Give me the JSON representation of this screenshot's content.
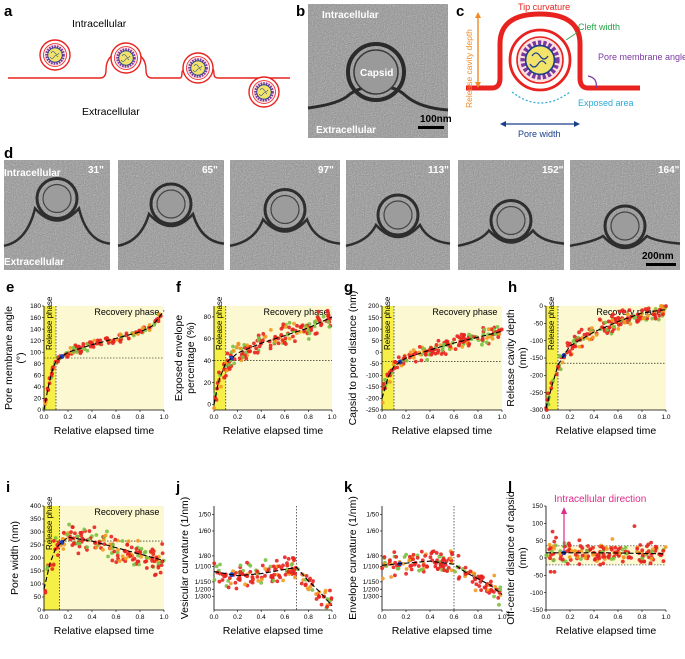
{
  "panel_labels": [
    "a",
    "b",
    "c",
    "d",
    "e",
    "f",
    "g",
    "h",
    "i",
    "j",
    "k",
    "l"
  ],
  "panel_a": {
    "intracellular": "Intracellular",
    "extracellular": "Extracellular"
  },
  "panel_b": {
    "intracellular": "Intracellular",
    "capsid": "Capsid",
    "extracellular": "Extracellular",
    "scale": "100nm"
  },
  "panel_c": {
    "release_cavity_depth": "Release cavity depth",
    "tip_curvature": "Tip curvature",
    "cleft_width": "Cleft width",
    "pore_membrane_angle": "Pore membrane angle",
    "exposed_area": "Exposed area",
    "pore_width": "Pore width",
    "colors": {
      "membrane": "#e8231f",
      "depth": "#f08a24",
      "cleft": "#2aa44a",
      "angle": "#7a3aa0",
      "exposed": "#2aa8d8",
      "width": "#1a3e8c"
    }
  },
  "panel_d": {
    "intracellular": "Intracellular",
    "extracellular": "Extracellular",
    "frame_times": [
      "31\"",
      "65\"",
      "97\"",
      "113\"",
      "152\"",
      "164\""
    ],
    "scale": "200nm"
  },
  "common": {
    "release_phase": "Release phase",
    "recovery_phase": "Recovery phase",
    "xlabel": "Relative elapsed time"
  },
  "colors": {
    "red": "#e8231f",
    "green": "#7ac143",
    "orange": "#f39a1f",
    "blue": "#1f3fbf",
    "phase_yellow": "#f5ef48",
    "phase_light": "#fbf8d2"
  },
  "chart_data": [
    {
      "id": "e",
      "type": "scatter",
      "ylabel": [
        "Pore membrane angle",
        "(°)"
      ],
      "xlim": [
        0,
        1
      ],
      "ylim": [
        0,
        180
      ],
      "xticks": [
        "0.0",
        "0.2",
        "0.4",
        "0.6",
        "0.8",
        "1.0"
      ],
      "yticks": [
        "0",
        "20",
        "40",
        "60",
        "80",
        "100",
        "120",
        "140",
        "160",
        "180"
      ],
      "hline": 90,
      "vline": 0.1,
      "release_end": 0.1,
      "trend": [
        [
          0,
          0
        ],
        [
          0.03,
          35
        ],
        [
          0.07,
          70
        ],
        [
          0.1,
          85
        ],
        [
          0.2,
          100
        ],
        [
          0.4,
          113
        ],
        [
          0.6,
          124
        ],
        [
          0.8,
          135
        ],
        [
          0.9,
          145
        ],
        [
          0.95,
          158
        ],
        [
          1,
          172
        ]
      ],
      "noise": 5,
      "n": 140
    },
    {
      "id": "f",
      "type": "scatter",
      "ylabel": [
        "Exposed envelope",
        "percentage (%)"
      ],
      "xlim": [
        0,
        1
      ],
      "ylim": [
        -5,
        90
      ],
      "xticks": [
        "0.0",
        "0.2",
        "0.4",
        "0.6",
        "0.8",
        "1.0"
      ],
      "yticks": [
        "0",
        "20",
        "40",
        "60",
        "80"
      ],
      "hline": 40,
      "vline": 0.1,
      "release_end": 0.1,
      "trend": [
        [
          0,
          0
        ],
        [
          0.04,
          22
        ],
        [
          0.1,
          38
        ],
        [
          0.2,
          47
        ],
        [
          0.4,
          56
        ],
        [
          0.6,
          63
        ],
        [
          0.8,
          70
        ],
        [
          1,
          80
        ]
      ],
      "noise": 8,
      "n": 170
    },
    {
      "id": "g",
      "type": "scatter",
      "ylabel": [
        "Capsid to pore distance (nm)"
      ],
      "xlim": [
        0,
        1
      ],
      "ylim": [
        -250,
        200
      ],
      "xticks": [
        "0.0",
        "0.2",
        "0.4",
        "0.6",
        "0.8",
        "1.0"
      ],
      "yticks": [
        "-250",
        "-200",
        "-150",
        "-100",
        "-50",
        "0",
        "50",
        "100",
        "150",
        "200"
      ],
      "hline": -40,
      "vline": 0.1,
      "release_end": 0.1,
      "trend": [
        [
          0,
          -200
        ],
        [
          0.05,
          -110
        ],
        [
          0.1,
          -60
        ],
        [
          0.2,
          -25
        ],
        [
          0.4,
          10
        ],
        [
          0.6,
          40
        ],
        [
          0.8,
          65
        ],
        [
          1,
          90
        ]
      ],
      "noise": 25,
      "n": 170
    },
    {
      "id": "h",
      "type": "scatter",
      "ylabel": [
        "Release cavity depth",
        "(nm)"
      ],
      "xlim": [
        0,
        1
      ],
      "ylim": [
        -300,
        0
      ],
      "xticks": [
        "0.0",
        "0.2",
        "0.4",
        "0.6",
        "0.8",
        "1.0"
      ],
      "yticks": [
        "-300",
        "-250",
        "-200",
        "-150",
        "-100",
        "-50",
        "0"
      ],
      "hline": -165,
      "vline": 0.1,
      "release_end": 0.1,
      "trend": [
        [
          0,
          -295
        ],
        [
          0.05,
          -230
        ],
        [
          0.1,
          -170
        ],
        [
          0.2,
          -115
        ],
        [
          0.4,
          -75
        ],
        [
          0.6,
          -45
        ],
        [
          0.8,
          -20
        ],
        [
          1,
          -10
        ]
      ],
      "noise": 20,
      "n": 170
    },
    {
      "id": "i",
      "type": "scatter",
      "ylabel": [
        "Pore width (nm)"
      ],
      "xlim": [
        0,
        1
      ],
      "ylim": [
        0,
        400
      ],
      "xticks": [
        "0.0",
        "0.2",
        "0.4",
        "0.6",
        "0.8",
        "1.0"
      ],
      "yticks": [
        "0",
        "50",
        "100",
        "150",
        "200",
        "250",
        "300",
        "350",
        "400"
      ],
      "hline": 265,
      "vline": 0.13,
      "release_end": 0.13,
      "trend": [
        [
          0,
          80
        ],
        [
          0.05,
          180
        ],
        [
          0.1,
          240
        ],
        [
          0.2,
          280
        ],
        [
          0.4,
          265
        ],
        [
          0.6,
          240
        ],
        [
          0.8,
          215
        ],
        [
          1,
          190
        ]
      ],
      "noise": 40,
      "n": 170
    },
    {
      "id": "j",
      "type": "scatter",
      "ylabel": [
        "Vesicular curvature (1/nm)"
      ],
      "xlim": [
        0,
        1
      ],
      "ylim": [
        0,
        1
      ],
      "xticks": [
        "0.0",
        "0.2",
        "0.4",
        "0.6",
        "0.8",
        "1.0"
      ],
      "yticks": [
        "1/300",
        "1/200",
        "1/150",
        "1/100",
        "1/80",
        "1/60",
        "1/50"
      ],
      "ytick_fracs": [
        0.13,
        0.2,
        0.27,
        0.42,
        0.52,
        0.76,
        0.92
      ],
      "vline": 0.7,
      "trend": [
        [
          0,
          0.37
        ],
        [
          0.2,
          0.33
        ],
        [
          0.4,
          0.35
        ],
        [
          0.6,
          0.39
        ],
        [
          0.7,
          0.41
        ],
        [
          0.8,
          0.28
        ],
        [
          0.9,
          0.17
        ],
        [
          1,
          0.04
        ]
      ],
      "noise": 0.09,
      "n": 150
    },
    {
      "id": "k",
      "type": "scatter",
      "ylabel": [
        "Envelope curvature (1/nm)"
      ],
      "xlim": [
        0,
        1
      ],
      "ylim": [
        0,
        1
      ],
      "xticks": [
        "0.0",
        "0.2",
        "0.4",
        "0.6",
        "0.8",
        "1.0"
      ],
      "yticks": [
        "1/300",
        "1/200",
        "1/150",
        "1/100",
        "1/80",
        "1/60",
        "1/50"
      ],
      "ytick_fracs": [
        0.13,
        0.2,
        0.27,
        0.42,
        0.52,
        0.76,
        0.92
      ],
      "vline": 0.6,
      "trend": [
        [
          0,
          0.43
        ],
        [
          0.2,
          0.45
        ],
        [
          0.4,
          0.47
        ],
        [
          0.6,
          0.44
        ],
        [
          0.7,
          0.36
        ],
        [
          0.8,
          0.3
        ],
        [
          0.9,
          0.24
        ],
        [
          1,
          0.15
        ]
      ],
      "noise": 0.08,
      "n": 150
    },
    {
      "id": "l",
      "type": "scatter",
      "ylabel": [
        "Off-center distance of capsid",
        "(nm)"
      ],
      "xlim": [
        0,
        1
      ],
      "ylim": [
        -150,
        150
      ],
      "xticks": [
        "0.0",
        "0.2",
        "0.4",
        "0.6",
        "0.8",
        "1.0"
      ],
      "yticks": [
        "-150",
        "-100",
        "-50",
        "0",
        "50",
        "100",
        "150"
      ],
      "band": [
        -20,
        35
      ],
      "annotation": "Intracellular direction",
      "trend": [
        [
          0,
          15
        ],
        [
          0.5,
          15
        ],
        [
          1,
          12
        ]
      ],
      "noise": 22,
      "n": 170
    }
  ]
}
